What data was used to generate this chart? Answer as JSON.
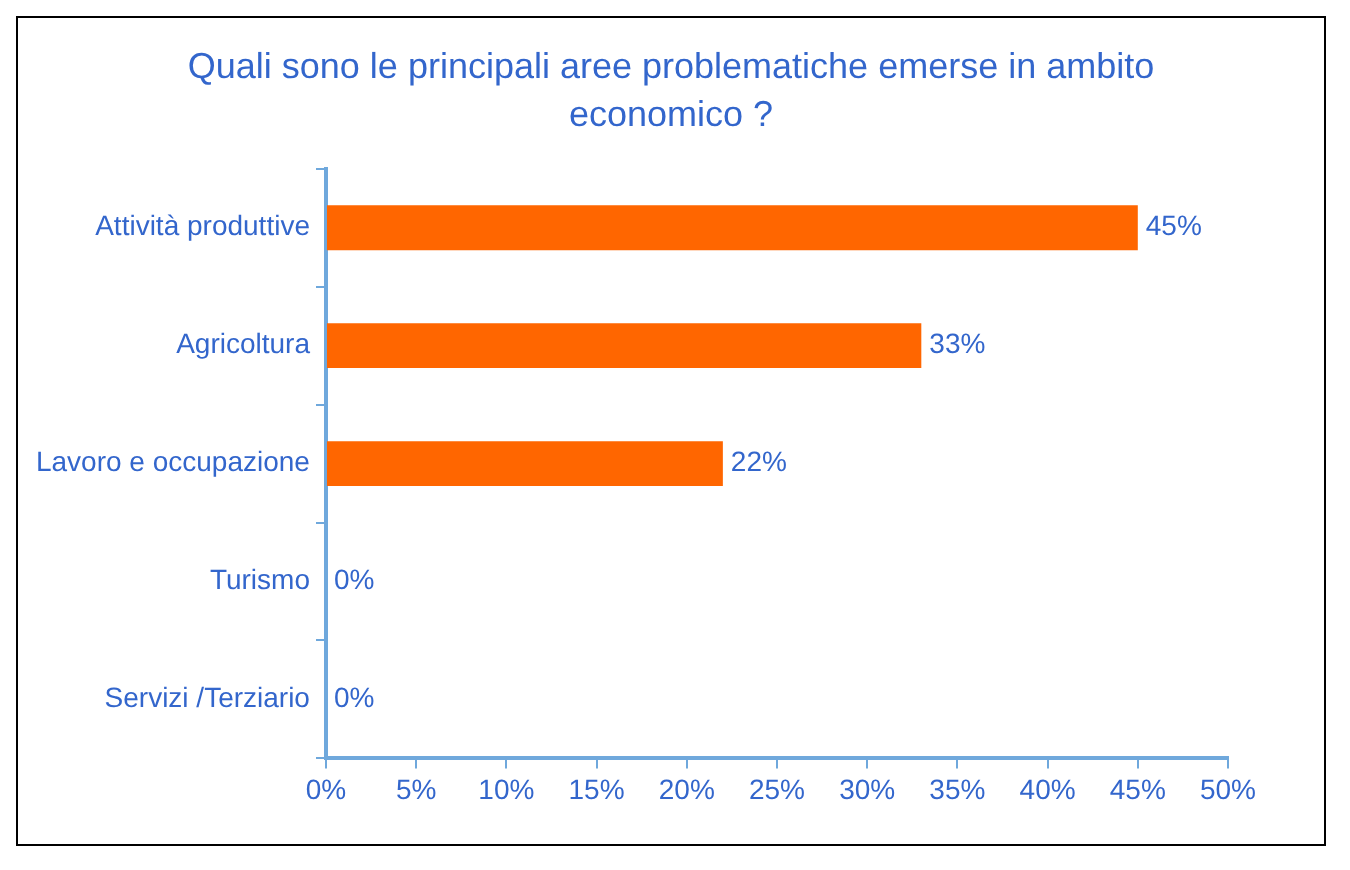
{
  "chart_data": {
    "type": "bar",
    "orientation": "horizontal",
    "title": "Quali sono le principali aree problematiche emerse  in ambito economico ?",
    "categories": [
      "Attività produttive",
      "Agricoltura",
      "Lavoro e occupazione",
      "Turismo",
      "Servizi /Terziario"
    ],
    "values": [
      45,
      33,
      22,
      0,
      0
    ],
    "value_labels": [
      "45%",
      "33%",
      "22%",
      "0%",
      "0%"
    ],
    "color": "#ff6600",
    "xlim": [
      0,
      50
    ],
    "xticks": [
      {
        "value": 0,
        "label": "0%"
      },
      {
        "value": 5,
        "label": "5%"
      },
      {
        "value": 10,
        "label": "10%"
      },
      {
        "value": 15,
        "label": "15%"
      },
      {
        "value": 20,
        "label": "20%"
      },
      {
        "value": 25,
        "label": "25%"
      },
      {
        "value": 30,
        "label": "30%"
      },
      {
        "value": 35,
        "label": "35%"
      },
      {
        "value": 40,
        "label": "40%"
      },
      {
        "value": 45,
        "label": "45%"
      },
      {
        "value": 50,
        "label": "50%"
      }
    ]
  }
}
